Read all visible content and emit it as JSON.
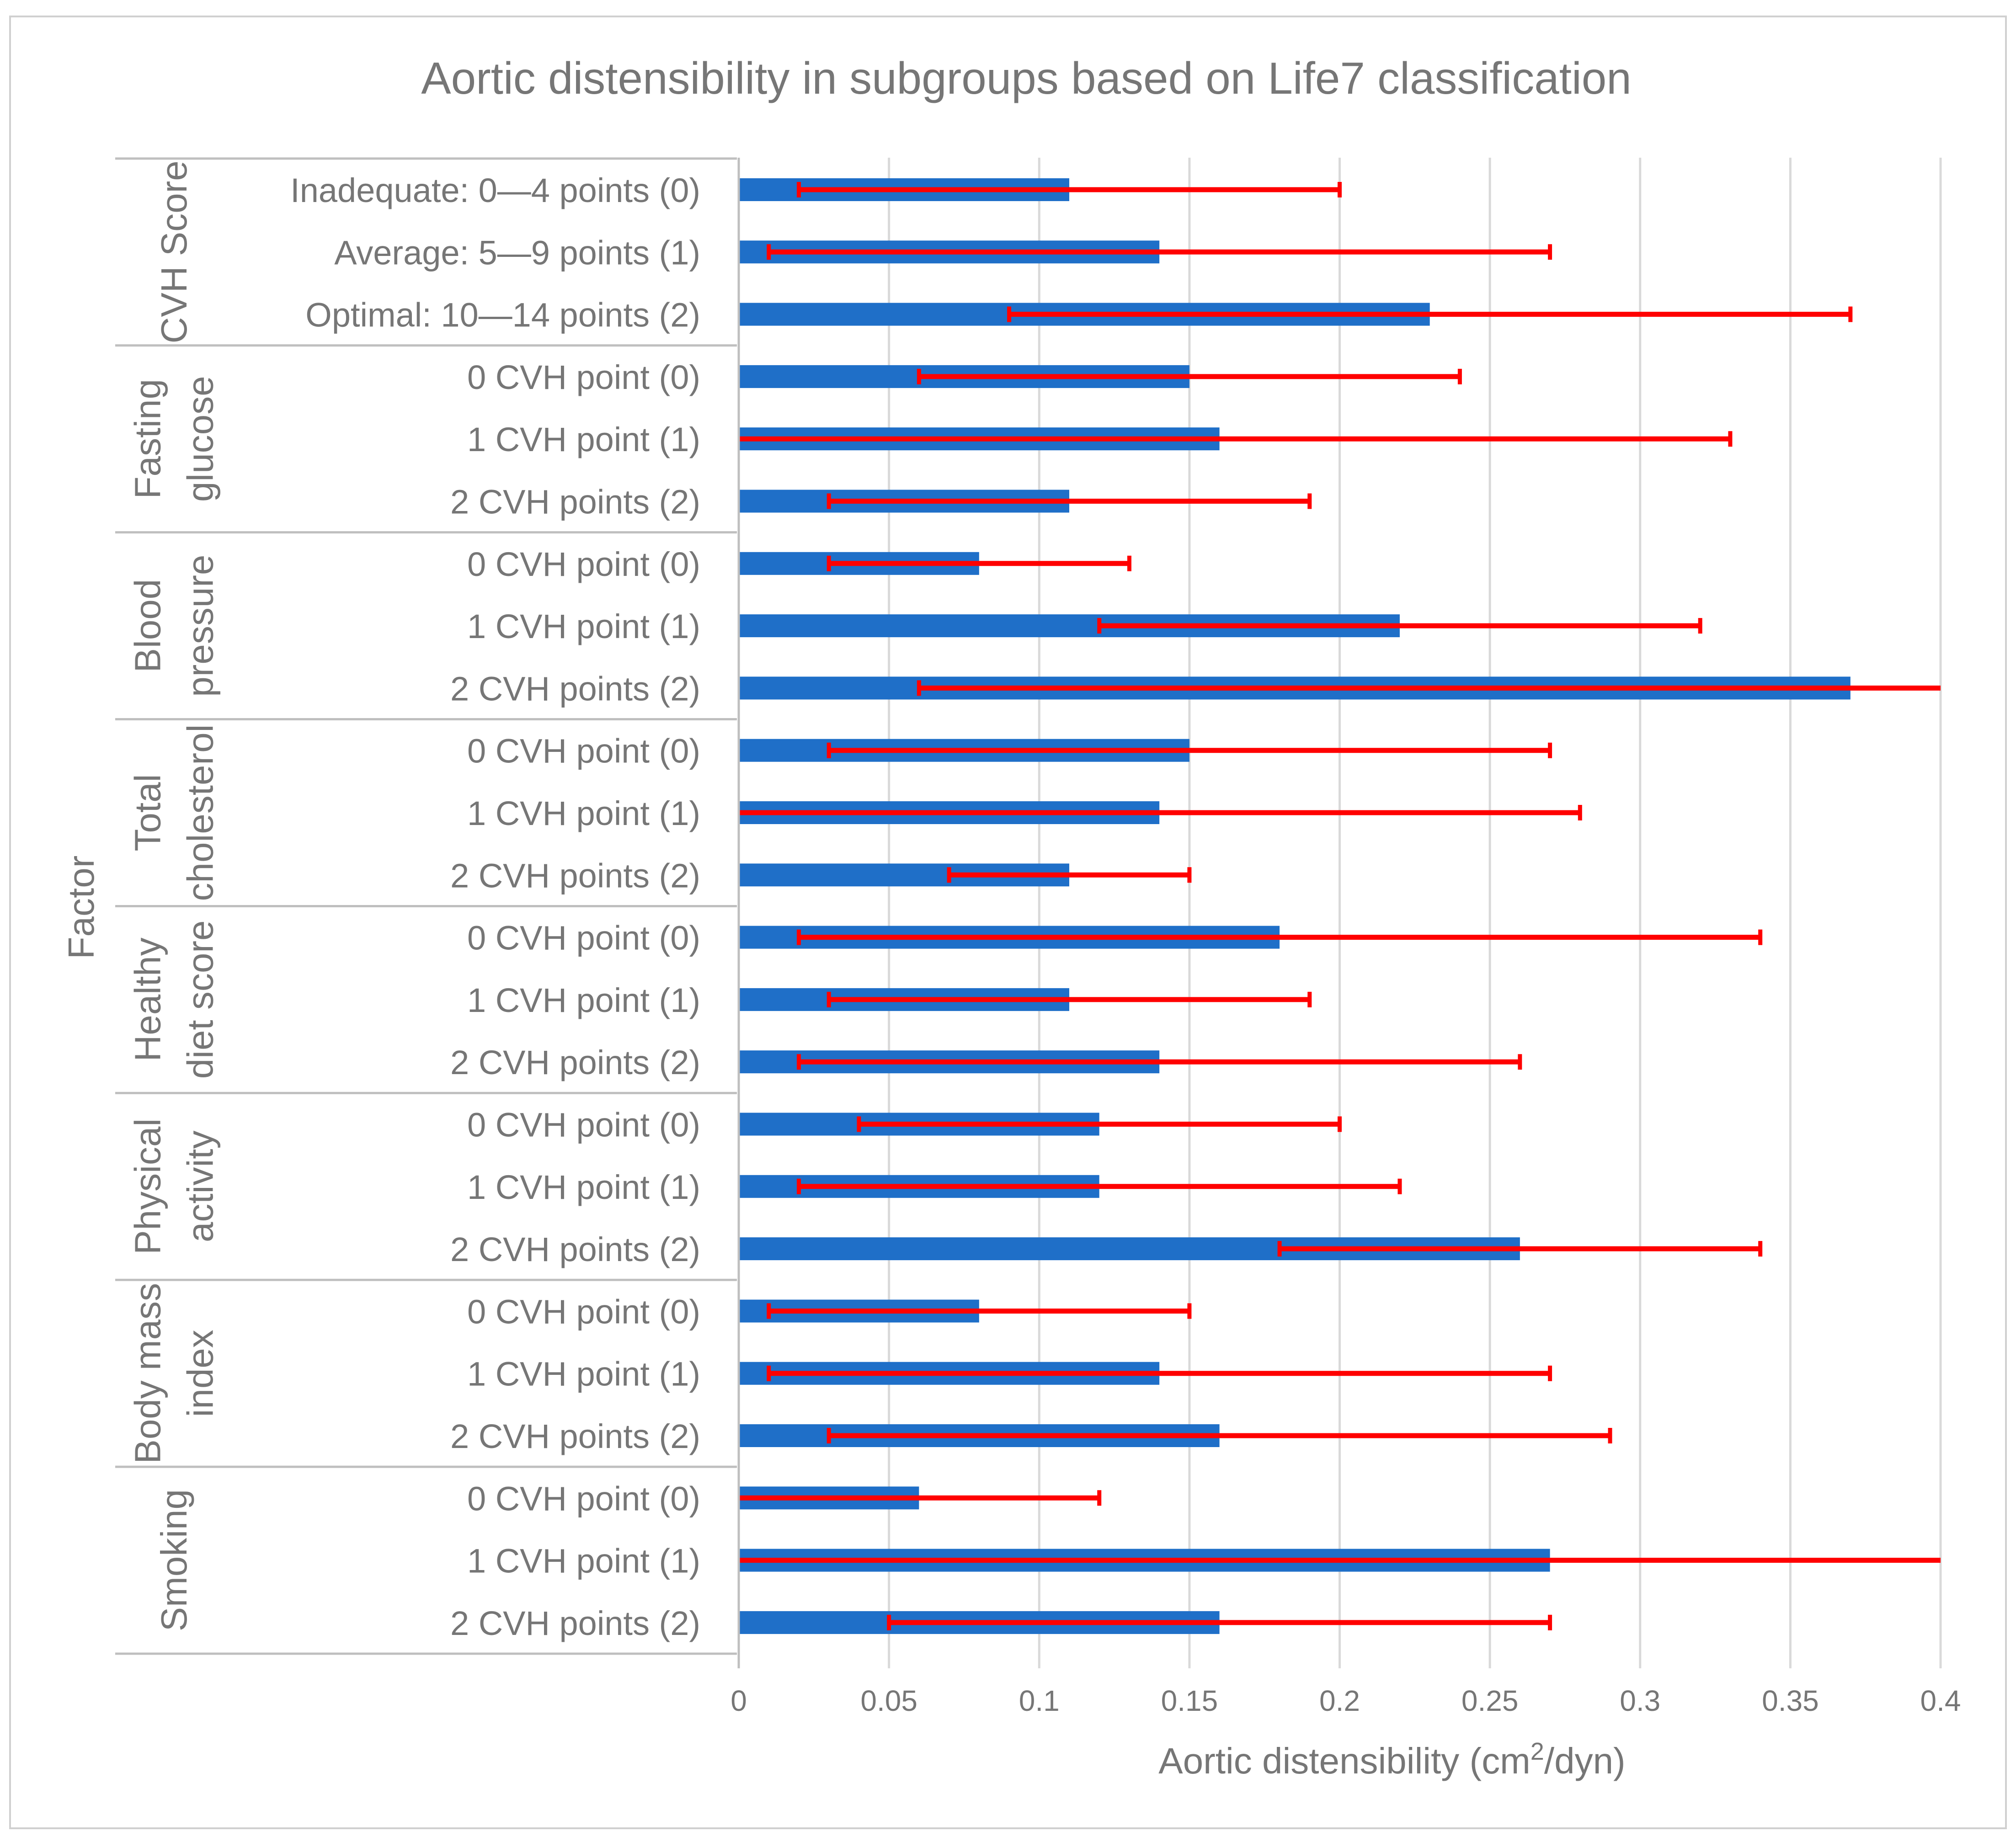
{
  "chart_data": {
    "type": "bar",
    "orientation": "horizontal",
    "title": "Aortic distensibility in subgroups based on Life7 classification",
    "xlabel_main": "Aortic distensibility (cm",
    "xlabel_sup": "2",
    "xlabel_tail": "/dyn)",
    "ylabel": "Factor",
    "xlim": [
      0,
      0.4
    ],
    "x_ticks": [
      0,
      0.05,
      0.1,
      0.15,
      0.2,
      0.25,
      0.3,
      0.35,
      0.4
    ],
    "x_tick_labels": [
      "0",
      "0.05",
      "0.1",
      "0.15",
      "0.2",
      "0.25",
      "0.3",
      "0.35",
      "0.4"
    ],
    "grid": true,
    "colors": {
      "bar": "#1f6fc8",
      "error": "#ff0000",
      "text": "#767676",
      "grid": "#d9d9d9",
      "line": "#bfbfbf"
    },
    "groups": [
      {
        "name_lines": [
          "CVH Score"
        ],
        "items": [
          {
            "label": "Inadequate: 0—4 points (0)",
            "value": 0.11,
            "err_low": 0.02,
            "err_high": 0.2
          },
          {
            "label": "Average: 5—9 points (1)",
            "value": 0.14,
            "err_low": 0.01,
            "err_high": 0.27
          },
          {
            "label": "Optimal: 10—14 points (2)",
            "value": 0.23,
            "err_low": 0.09,
            "err_high": 0.37
          }
        ]
      },
      {
        "name_lines": [
          "Fasting",
          "glucose"
        ],
        "items": [
          {
            "label": "0 CVH point (0)",
            "value": 0.15,
            "err_low": 0.06,
            "err_high": 0.24
          },
          {
            "label": "1 CVH point (1)",
            "value": 0.16,
            "err_low": 0.0,
            "err_high": 0.33
          },
          {
            "label": "2 CVH points (2)",
            "value": 0.11,
            "err_low": 0.03,
            "err_high": 0.19
          }
        ]
      },
      {
        "name_lines": [
          "Blood",
          "pressure"
        ],
        "items": [
          {
            "label": "0 CVH point (0)",
            "value": 0.08,
            "err_low": 0.03,
            "err_high": 0.13
          },
          {
            "label": "1 CVH point (1)",
            "value": 0.22,
            "err_low": 0.12,
            "err_high": 0.32
          },
          {
            "label": "2 CVH points (2)",
            "value": 0.37,
            "err_low": 0.06,
            "err_high": 0.4
          }
        ]
      },
      {
        "name_lines": [
          "Total",
          "cholesterol"
        ],
        "items": [
          {
            "label": "0 CVH point (0)",
            "value": 0.15,
            "err_low": 0.03,
            "err_high": 0.27
          },
          {
            "label": "1 CVH point (1)",
            "value": 0.14,
            "err_low": 0.0,
            "err_high": 0.28
          },
          {
            "label": "2 CVH points (2)",
            "value": 0.11,
            "err_low": 0.07,
            "err_high": 0.15
          }
        ]
      },
      {
        "name_lines": [
          "Healthy",
          "diet score"
        ],
        "items": [
          {
            "label": "0 CVH point (0)",
            "value": 0.18,
            "err_low": 0.02,
            "err_high": 0.34
          },
          {
            "label": "1 CVH point (1)",
            "value": 0.11,
            "err_low": 0.03,
            "err_high": 0.19
          },
          {
            "label": "2 CVH points (2)",
            "value": 0.14,
            "err_low": 0.02,
            "err_high": 0.26
          }
        ]
      },
      {
        "name_lines": [
          "Physical",
          "activity"
        ],
        "items": [
          {
            "label": "0 CVH point (0)",
            "value": 0.12,
            "err_low": 0.04,
            "err_high": 0.2
          },
          {
            "label": "1 CVH point (1)",
            "value": 0.12,
            "err_low": 0.02,
            "err_high": 0.22
          },
          {
            "label": "2 CVH points (2)",
            "value": 0.26,
            "err_low": 0.18,
            "err_high": 0.34
          }
        ]
      },
      {
        "name_lines": [
          "Body mass",
          "index"
        ],
        "items": [
          {
            "label": "0 CVH point (0)",
            "value": 0.08,
            "err_low": 0.01,
            "err_high": 0.15
          },
          {
            "label": "1 CVH point (1)",
            "value": 0.14,
            "err_low": 0.01,
            "err_high": 0.27
          },
          {
            "label": "2 CVH points (2)",
            "value": 0.16,
            "err_low": 0.03,
            "err_high": 0.29
          }
        ]
      },
      {
        "name_lines": [
          "Smoking"
        ],
        "items": [
          {
            "label": "0 CVH point (0)",
            "value": 0.06,
            "err_low": 0.0,
            "err_high": 0.12
          },
          {
            "label": "1 CVH point (1)",
            "value": 0.27,
            "err_low": 0.0,
            "err_high": 0.4
          },
          {
            "label": "2 CVH points (2)",
            "value": 0.16,
            "err_low": 0.05,
            "err_high": 0.27
          }
        ]
      }
    ]
  }
}
